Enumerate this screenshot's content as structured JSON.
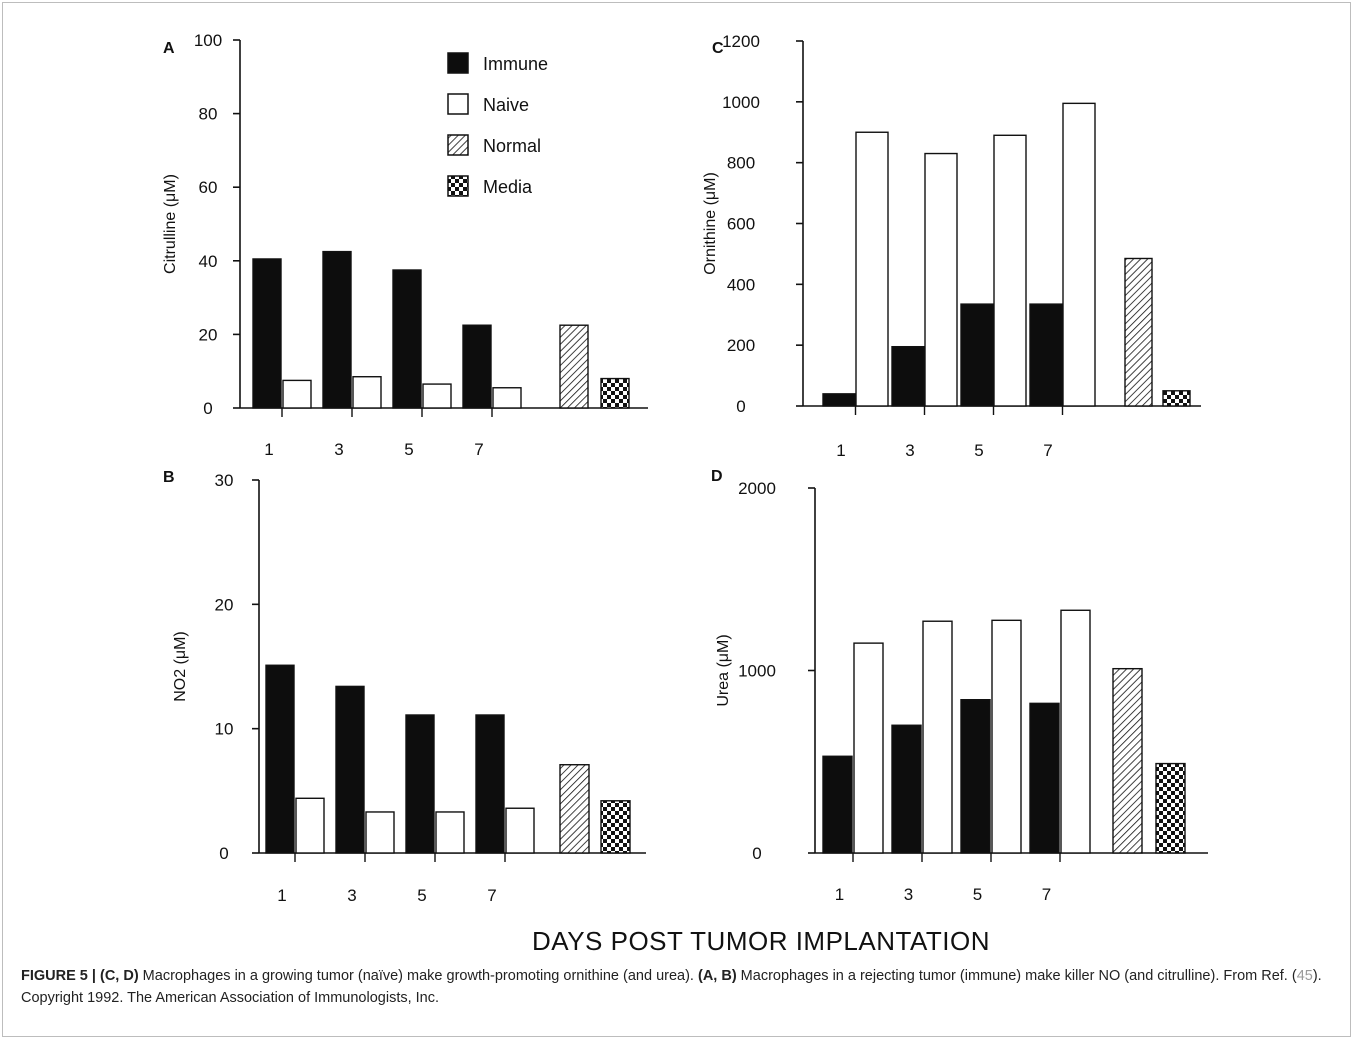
{
  "figure": {
    "x_axis_title": "DAYS POST TUMOR IMPLANTATION",
    "caption": {
      "label": "FIGURE 5 | (C, D)",
      "part1": " Macrophages in a growing tumor (naïve) make growth-promoting ornithine (and urea). ",
      "bold_ref": "(A, B)",
      "part2": " Macrophages in a rejecting tumor (immune) make killer NO (and citrulline). From Ref. (",
      "ref_num": "45",
      "part3": "). Copyright 1992. The American Association of Immunologists, Inc."
    }
  },
  "legend": [
    {
      "name": "Immune",
      "pattern": "solid"
    },
    {
      "name": "Naive",
      "pattern": "open"
    },
    {
      "name": "Normal",
      "pattern": "hatch"
    },
    {
      "name": "Media",
      "pattern": "checker"
    }
  ],
  "colors": {
    "fill": "#0d0d0d",
    "open": "#ffffff",
    "stroke": "#111111"
  },
  "chart_data": [
    {
      "panel": "A",
      "type": "bar",
      "ylabel": "Citrulline (μM)",
      "ylim": [
        0,
        100
      ],
      "yticks": [
        "0",
        "20",
        "40",
        "60",
        "80",
        "100"
      ],
      "categories": [
        "1",
        "3",
        "5",
        "7"
      ],
      "series": [
        {
          "name": "Immune",
          "values": [
            40.5,
            42.5,
            37.5,
            22.5
          ]
        },
        {
          "name": "Naive",
          "values": [
            7.5,
            8.5,
            6.5,
            5.5
          ]
        }
      ],
      "controls": [
        {
          "name": "Normal",
          "value": 22.5
        },
        {
          "name": "Media",
          "value": 8
        }
      ]
    },
    {
      "panel": "B",
      "type": "bar",
      "ylabel": "NO2 (μM)",
      "ylim": [
        0,
        30
      ],
      "yticks": [
        "0",
        "10",
        "20",
        "30"
      ],
      "categories": [
        "1",
        "3",
        "5",
        "7"
      ],
      "series": [
        {
          "name": "Immune",
          "values": [
            15.1,
            13.4,
            11.1,
            11.1
          ]
        },
        {
          "name": "Naive",
          "values": [
            4.4,
            3.3,
            3.3,
            3.6
          ]
        }
      ],
      "controls": [
        {
          "name": "Normal",
          "value": 7.1
        },
        {
          "name": "Media",
          "value": 4.2
        }
      ]
    },
    {
      "panel": "C",
      "type": "bar",
      "ylabel": "Ornithine (μM)",
      "ylim": [
        0,
        1200
      ],
      "yticks": [
        "0",
        "200",
        "400",
        "600",
        "800",
        "1000",
        "1200"
      ],
      "categories": [
        "1",
        "3",
        "5",
        "7"
      ],
      "series": [
        {
          "name": "Immune",
          "values": [
            40,
            195,
            335,
            335
          ]
        },
        {
          "name": "Naive",
          "values": [
            900,
            830,
            890,
            995
          ]
        }
      ],
      "controls": [
        {
          "name": "Normal",
          "value": 485
        },
        {
          "name": "Media",
          "value": 50
        }
      ]
    },
    {
      "panel": "D",
      "type": "bar",
      "ylabel": "Urea (μM)",
      "ylim": [
        0,
        2000
      ],
      "yticks": [
        "0",
        "1000",
        "2000"
      ],
      "categories": [
        "1",
        "3",
        "5",
        "7"
      ],
      "series": [
        {
          "name": "Immune",
          "values": [
            530,
            700,
            840,
            820
          ]
        },
        {
          "name": "Naive",
          "values": [
            1150,
            1270,
            1275,
            1330
          ]
        }
      ],
      "controls": [
        {
          "name": "Normal",
          "value": 1010
        },
        {
          "name": "Media",
          "value": 490
        }
      ]
    }
  ]
}
